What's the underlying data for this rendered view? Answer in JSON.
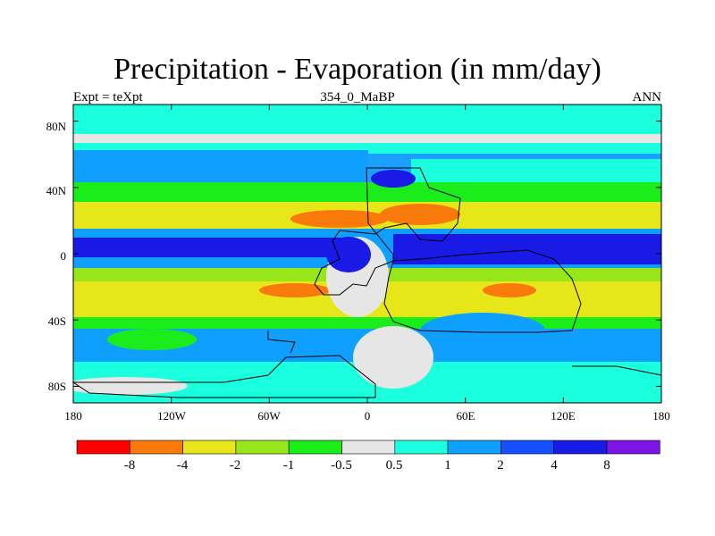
{
  "header": {
    "title": "Precipitation - Evaporation (in mm/day)",
    "left": "Expt = teXpt",
    "center": "354_0_MaBP",
    "right": "ANN"
  },
  "map": {
    "lat_ticks": [
      "80N",
      "40N",
      "0",
      "40S",
      "80S"
    ],
    "lon_ticks": [
      "180",
      "120W",
      "60W",
      "0",
      "60E",
      "120E",
      "180"
    ],
    "ocean_fill": "#e0e0e0",
    "land_outline_color": "#000000"
  },
  "colorbar": {
    "colors": [
      "#ff0000",
      "#f97a0a",
      "#e6e619",
      "#96e619",
      "#1aed1a",
      "#e6e6e6",
      "#1affdd",
      "#0fa0ff",
      "#1450ff",
      "#1a1ae6",
      "#7d14e6"
    ],
    "labels": [
      "-8",
      "-4",
      "-2",
      "-1",
      "-0.5",
      "0.5",
      "1",
      "2",
      "4",
      "8"
    ]
  },
  "chart_data": {
    "type": "heatmap",
    "title": "Precipitation - Evaporation (in mm/day)",
    "subtitle_left": "Expt = teXpt",
    "subtitle_center": "354_0_MaBP",
    "subtitle_right": "ANN",
    "xlim": [
      -180,
      180
    ],
    "ylim": [
      -90,
      90
    ],
    "levels": [
      -8,
      -4,
      -2,
      -1,
      -0.5,
      0.5,
      1,
      2,
      4,
      8
    ],
    "zonal_bands": [
      {
        "lat_range": [
          58,
          90
        ],
        "value_range": [
          0.5,
          1
        ]
      },
      {
        "lat_range": [
          38,
          58
        ],
        "value_range": [
          1,
          2
        ]
      },
      {
        "lat_range": [
          30,
          38
        ],
        "value_range": [
          -1,
          -0.5
        ]
      },
      {
        "lat_range": [
          12,
          30
        ],
        "value_range": [
          -4,
          -1
        ]
      },
      {
        "lat_range": [
          -5,
          12
        ],
        "value_range": [
          2,
          8
        ]
      },
      {
        "lat_range": [
          -35,
          -5
        ],
        "value_range": [
          -4,
          -1
        ]
      },
      {
        "lat_range": [
          -55,
          -35
        ],
        "value_range": [
          1,
          2
        ]
      },
      {
        "lat_range": [
          -90,
          -55
        ],
        "value_range": [
          -0.5,
          0.5
        ]
      }
    ]
  }
}
